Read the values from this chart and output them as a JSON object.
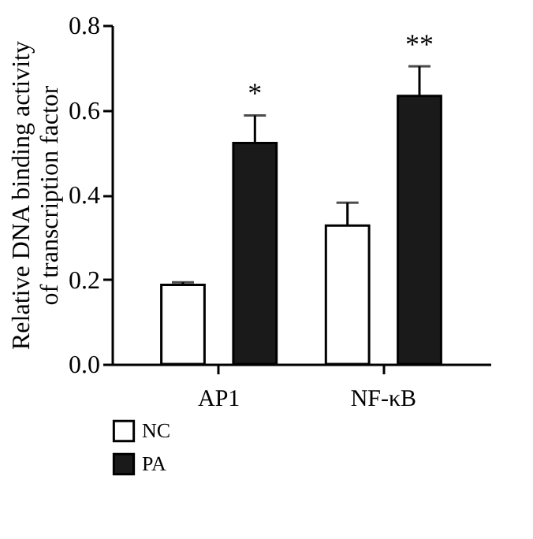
{
  "chart_data": {
    "type": "bar",
    "ylabel": "Relative DNA binding activity\nof transcription factor",
    "categories": [
      "AP1",
      "NF-κB"
    ],
    "series": [
      {
        "name": "NC",
        "color": "#ffffff",
        "values": [
          0.187,
          0.327
        ],
        "errors": [
          [
            0.187,
            0.193
          ],
          [
            0.327,
            0.381
          ]
        ]
      },
      {
        "name": "PA",
        "color": "#1a1a1a",
        "values": [
          0.522,
          0.633
        ],
        "errors": [
          [
            0.522,
            0.587
          ],
          [
            0.633,
            0.703
          ]
        ]
      }
    ],
    "annotations": [
      "*",
      "**"
    ],
    "ylim": [
      0,
      0.8
    ],
    "yticks": [
      {
        "value": 0,
        "label": "0.0"
      },
      {
        "value": 0.2,
        "label": "0.2"
      },
      {
        "value": 0.4,
        "label": "0.4"
      },
      {
        "value": 0.6,
        "label": "0.6"
      },
      {
        "value": 0.8,
        "label": "0.8"
      }
    ],
    "grid": false,
    "legend": "bottom"
  }
}
